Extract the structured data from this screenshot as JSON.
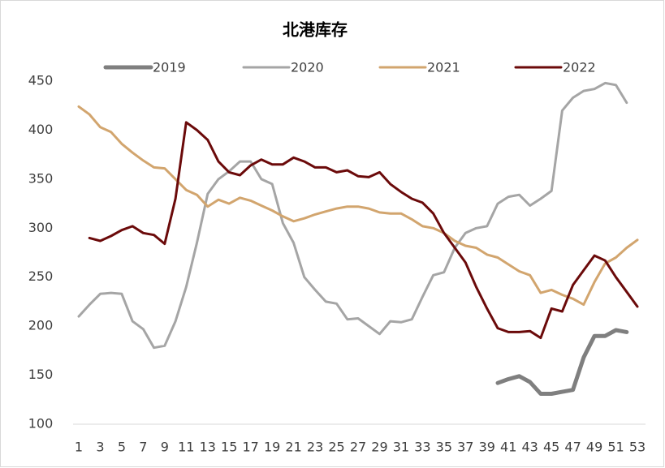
{
  "chart_data": {
    "type": "line",
    "title": "北港库存",
    "categories": [
      "1",
      null,
      "3",
      null,
      "5",
      null,
      "7",
      null,
      "9",
      null,
      "11",
      null,
      "13",
      null,
      "15",
      null,
      "17",
      null,
      "19",
      null,
      "21",
      null,
      "23",
      null,
      "25",
      null,
      "27",
      null,
      "29",
      null,
      "31",
      null,
      "33",
      null,
      "35",
      null,
      "37",
      null,
      "39",
      null,
      "41",
      null,
      "43",
      null,
      "45",
      null,
      "47",
      null,
      "49",
      null,
      "51",
      null,
      "53"
    ],
    "ylim": [
      100,
      450
    ],
    "yticks": [
      100,
      150,
      200,
      250,
      300,
      350,
      400,
      450
    ],
    "grid": false,
    "legend": "top",
    "series": [
      {
        "name": "2019",
        "color": "#7f7f7f",
        "values": [
          null,
          null,
          null,
          null,
          null,
          null,
          null,
          null,
          null,
          null,
          null,
          null,
          null,
          null,
          null,
          null,
          null,
          null,
          null,
          null,
          null,
          null,
          null,
          null,
          null,
          null,
          null,
          null,
          null,
          null,
          null,
          null,
          null,
          null,
          null,
          null,
          null,
          null,
          null,
          142,
          146,
          149,
          143,
          131,
          131,
          133,
          135,
          168,
          190,
          190,
          196,
          194,
          null
        ]
      },
      {
        "name": "2020",
        "color": "#a5a5a5",
        "values": [
          210,
          222,
          233,
          234,
          233,
          205,
          197,
          178,
          180,
          205,
          240,
          285,
          335,
          350,
          358,
          368,
          368,
          350,
          345,
          305,
          285,
          250,
          237,
          225,
          223,
          207,
          208,
          200,
          192,
          205,
          204,
          207,
          230,
          252,
          255,
          280,
          295,
          300,
          302,
          325,
          332,
          334,
          323,
          330,
          338,
          420,
          433,
          440,
          442,
          448,
          446,
          428,
          null
        ]
      },
      {
        "name": "2021",
        "color": "#d2a56e",
        "values": [
          424,
          416,
          403,
          398,
          386,
          377,
          369,
          362,
          361,
          350,
          339,
          334,
          322,
          329,
          325,
          331,
          328,
          323,
          318,
          312,
          307,
          310,
          314,
          317,
          320,
          322,
          322,
          320,
          316,
          315,
          315,
          309,
          302,
          300,
          295,
          287,
          282,
          280,
          273,
          270,
          263,
          256,
          252,
          234,
          237,
          232,
          228,
          222,
          245,
          264,
          270,
          280,
          288
        ]
      },
      {
        "name": "2022",
        "color": "#6b0a0a",
        "values": [
          null,
          290,
          287,
          292,
          298,
          302,
          295,
          293,
          284,
          330,
          408,
          400,
          390,
          368,
          357,
          354,
          364,
          370,
          365,
          365,
          372,
          368,
          362,
          362,
          357,
          359,
          353,
          352,
          357,
          345,
          337,
          330,
          326,
          315,
          295,
          280,
          265,
          240,
          218,
          198,
          194,
          194,
          195,
          188,
          218,
          215,
          242,
          257,
          272,
          267,
          250,
          235,
          220
        ]
      }
    ]
  }
}
